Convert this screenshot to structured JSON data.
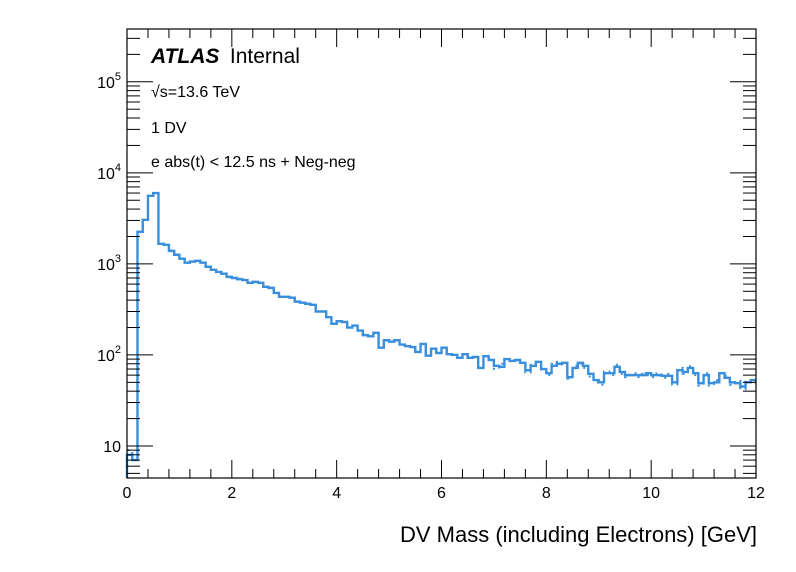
{
  "chart_data": {
    "type": "line",
    "subtype": "step-histogram",
    "title": "",
    "xlabel": "DV Mass (including Electrons) [GeV]",
    "ylabel": "",
    "xlim": [
      0,
      12
    ],
    "ylim": [
      4.45,
      380000
    ],
    "yscale": "log",
    "grid": false,
    "legend": "none",
    "x_ticks": [
      "0",
      "2",
      "4",
      "6",
      "8",
      "10",
      "12"
    ],
    "x_tick_values": [
      0,
      2,
      4,
      6,
      8,
      10,
      12
    ],
    "y_ticks": [
      {
        "value": 10,
        "base": "10",
        "exp": ""
      },
      {
        "value": 100,
        "base": "10",
        "exp": "2"
      },
      {
        "value": 1000,
        "base": "10",
        "exp": "3"
      },
      {
        "value": 10000,
        "base": "10",
        "exp": "4"
      },
      {
        "value": 100000,
        "base": "10",
        "exp": "5"
      }
    ],
    "bin_width": 0.1,
    "x_start": 0,
    "annotations": {
      "atlas": "ATLAS",
      "internal": "Internal",
      "energy": "√s=13.6 TeV",
      "selection": "1 DV",
      "cut": "e abs(t) < 12.5 ns + Neg-neg"
    },
    "series": [
      {
        "name": "solid",
        "style": "solid",
        "color": "#3a8fdc",
        "values": [
          8,
          7,
          2250,
          3050,
          5600,
          6000,
          1660,
          1620,
          1390,
          1260,
          1140,
          1030,
          1060,
          1080,
          1030,
          930,
          860,
          815,
          780,
          720,
          700,
          680,
          665,
          620,
          635,
          620,
          560,
          545,
          480,
          435,
          435,
          425,
          385,
          375,
          365,
          355,
          300,
          300,
          260,
          220,
          235,
          230,
          200,
          210,
          185,
          165,
          160,
          175,
          120,
          145,
          140,
          145,
          130,
          125,
          122,
          108,
          132,
          98,
          117,
          105,
          120,
          102,
          100,
          93,
          102,
          93,
          95,
          72,
          97,
          88,
          76,
          74,
          90,
          86,
          88,
          82,
          68,
          76,
          84,
          70,
          63,
          76,
          80,
          82,
          57,
          72,
          82,
          76,
          62,
          53,
          50,
          63,
          63,
          74,
          65,
          60,
          60,
          60,
          60,
          63,
          60,
          60,
          59,
          59,
          50,
          68,
          65,
          72,
          63,
          49,
          60,
          49,
          50,
          63,
          56,
          50,
          49,
          45,
          50,
          53
        ]
      },
      {
        "name": "dotted",
        "style": "dotted",
        "color": "#3a8fdc",
        "values": [
          9,
          7,
          2250,
          3050,
          5600,
          6000,
          1660,
          1620,
          1390,
          1260,
          1140,
          1030,
          1060,
          1080,
          1030,
          930,
          860,
          815,
          780,
          720,
          700,
          680,
          665,
          620,
          635,
          620,
          560,
          545,
          480,
          435,
          435,
          425,
          385,
          375,
          365,
          355,
          300,
          300,
          260,
          220,
          235,
          230,
          200,
          210,
          185,
          165,
          160,
          175,
          120,
          145,
          140,
          145,
          130,
          125,
          122,
          108,
          132,
          98,
          117,
          105,
          120,
          102,
          100,
          93,
          102,
          93,
          95,
          72,
          97,
          88,
          70,
          80,
          90,
          86,
          88,
          82,
          64,
          80,
          84,
          66,
          60,
          80,
          84,
          78,
          55,
          76,
          80,
          72,
          58,
          50,
          47,
          66,
          60,
          78,
          62,
          57,
          63,
          57,
          62,
          60,
          57,
          63,
          56,
          62,
          47,
          72,
          62,
          75,
          60,
          46,
          63,
          46,
          53,
          60,
          59,
          47,
          52,
          42,
          53,
          50
        ]
      }
    ]
  }
}
